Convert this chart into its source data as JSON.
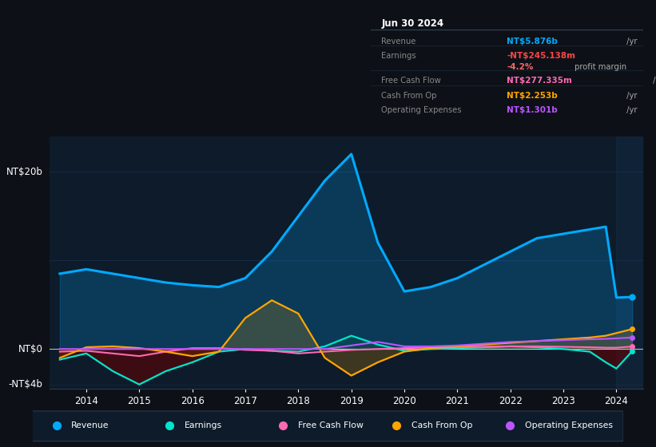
{
  "bg_color": "#0d1117",
  "plot_bg_color": "#0d1b2a",
  "grid_color": "#1e3a5f",
  "years": [
    2013.5,
    2014.0,
    2014.5,
    2015.0,
    2015.5,
    2016.0,
    2016.5,
    2017.0,
    2017.5,
    2018.0,
    2018.5,
    2019.0,
    2019.5,
    2020.0,
    2020.5,
    2021.0,
    2021.5,
    2022.0,
    2022.5,
    2023.0,
    2023.5,
    2023.8,
    2024.0,
    2024.3
  ],
  "revenue": [
    8.5,
    9.0,
    8.5,
    8.0,
    7.5,
    7.2,
    7.0,
    8.0,
    11.0,
    15.0,
    19.0,
    22.0,
    12.0,
    6.5,
    7.0,
    8.0,
    9.5,
    11.0,
    12.5,
    13.0,
    13.5,
    13.8,
    5.8,
    5.876
  ],
  "earnings": [
    -1.2,
    -0.5,
    -2.5,
    -4.0,
    -2.5,
    -1.5,
    -0.3,
    0.0,
    -0.2,
    -0.3,
    0.3,
    1.5,
    0.5,
    -0.2,
    0.0,
    0.1,
    0.2,
    0.3,
    0.2,
    0.0,
    -0.3,
    -1.5,
    -2.2,
    -0.245
  ],
  "free_cash_flow": [
    -0.3,
    -0.2,
    -0.5,
    -0.8,
    -0.3,
    0.1,
    0.1,
    -0.1,
    -0.2,
    -0.5,
    -0.3,
    -0.1,
    0.0,
    0.1,
    0.15,
    0.2,
    0.25,
    0.3,
    0.3,
    0.25,
    0.2,
    0.15,
    0.15,
    0.277
  ],
  "cash_from_op": [
    -1.0,
    0.2,
    0.3,
    0.1,
    -0.3,
    -0.8,
    -0.3,
    3.5,
    5.5,
    4.0,
    -1.0,
    -3.0,
    -1.5,
    -0.3,
    0.1,
    0.3,
    0.5,
    0.7,
    0.9,
    1.1,
    1.3,
    1.5,
    1.8,
    2.253
  ],
  "operating_expenses": [
    0.0,
    0.0,
    0.0,
    0.0,
    0.0,
    0.0,
    0.0,
    0.0,
    0.0,
    0.0,
    0.0,
    0.4,
    0.8,
    0.3,
    0.3,
    0.4,
    0.6,
    0.8,
    0.9,
    1.0,
    1.1,
    1.15,
    1.2,
    1.301
  ],
  "revenue_color": "#00aaff",
  "earnings_color": "#00e5cc",
  "free_cash_flow_color": "#ff69b4",
  "cash_from_op_color": "#ffa500",
  "operating_expenses_color": "#bb55ff",
  "ylim": [
    -4.5,
    24
  ],
  "xlim": [
    2013.3,
    2024.5
  ],
  "xticks": [
    2014,
    2015,
    2016,
    2017,
    2018,
    2019,
    2020,
    2021,
    2022,
    2023,
    2024
  ],
  "ytick_labels": [
    {
      "label": "-NT$4b",
      "value": -4
    },
    {
      "label": "NT$0",
      "value": 0
    },
    {
      "label": "NT$20b",
      "value": 20
    }
  ],
  "infobox": {
    "title": "Jun 30 2024",
    "rows": [
      {
        "label": "Revenue",
        "value": "NT$5.876b",
        "unit": "/yr",
        "color": "#00aaff"
      },
      {
        "label": "Earnings",
        "value": "-NT$245.138m",
        "unit": "/yr",
        "color": "#ff4444"
      },
      {
        "label": "",
        "value": "-4.2%",
        "unit": "profit margin",
        "color": "#ff6666"
      },
      {
        "label": "Free Cash Flow",
        "value": "NT$277.335m",
        "unit": "/yr",
        "color": "#ff69b4"
      },
      {
        "label": "Cash From Op",
        "value": "NT$2.253b",
        "unit": "/yr",
        "color": "#ffa500"
      },
      {
        "label": "Operating Expenses",
        "value": "NT$1.301b",
        "unit": "/yr",
        "color": "#bb55ff"
      }
    ]
  },
  "legend": [
    {
      "label": "Revenue",
      "color": "#00aaff"
    },
    {
      "label": "Earnings",
      "color": "#00e5cc"
    },
    {
      "label": "Free Cash Flow",
      "color": "#ff69b4"
    },
    {
      "label": "Cash From Op",
      "color": "#ffa500"
    },
    {
      "label": "Operating Expenses",
      "color": "#bb55ff"
    }
  ]
}
